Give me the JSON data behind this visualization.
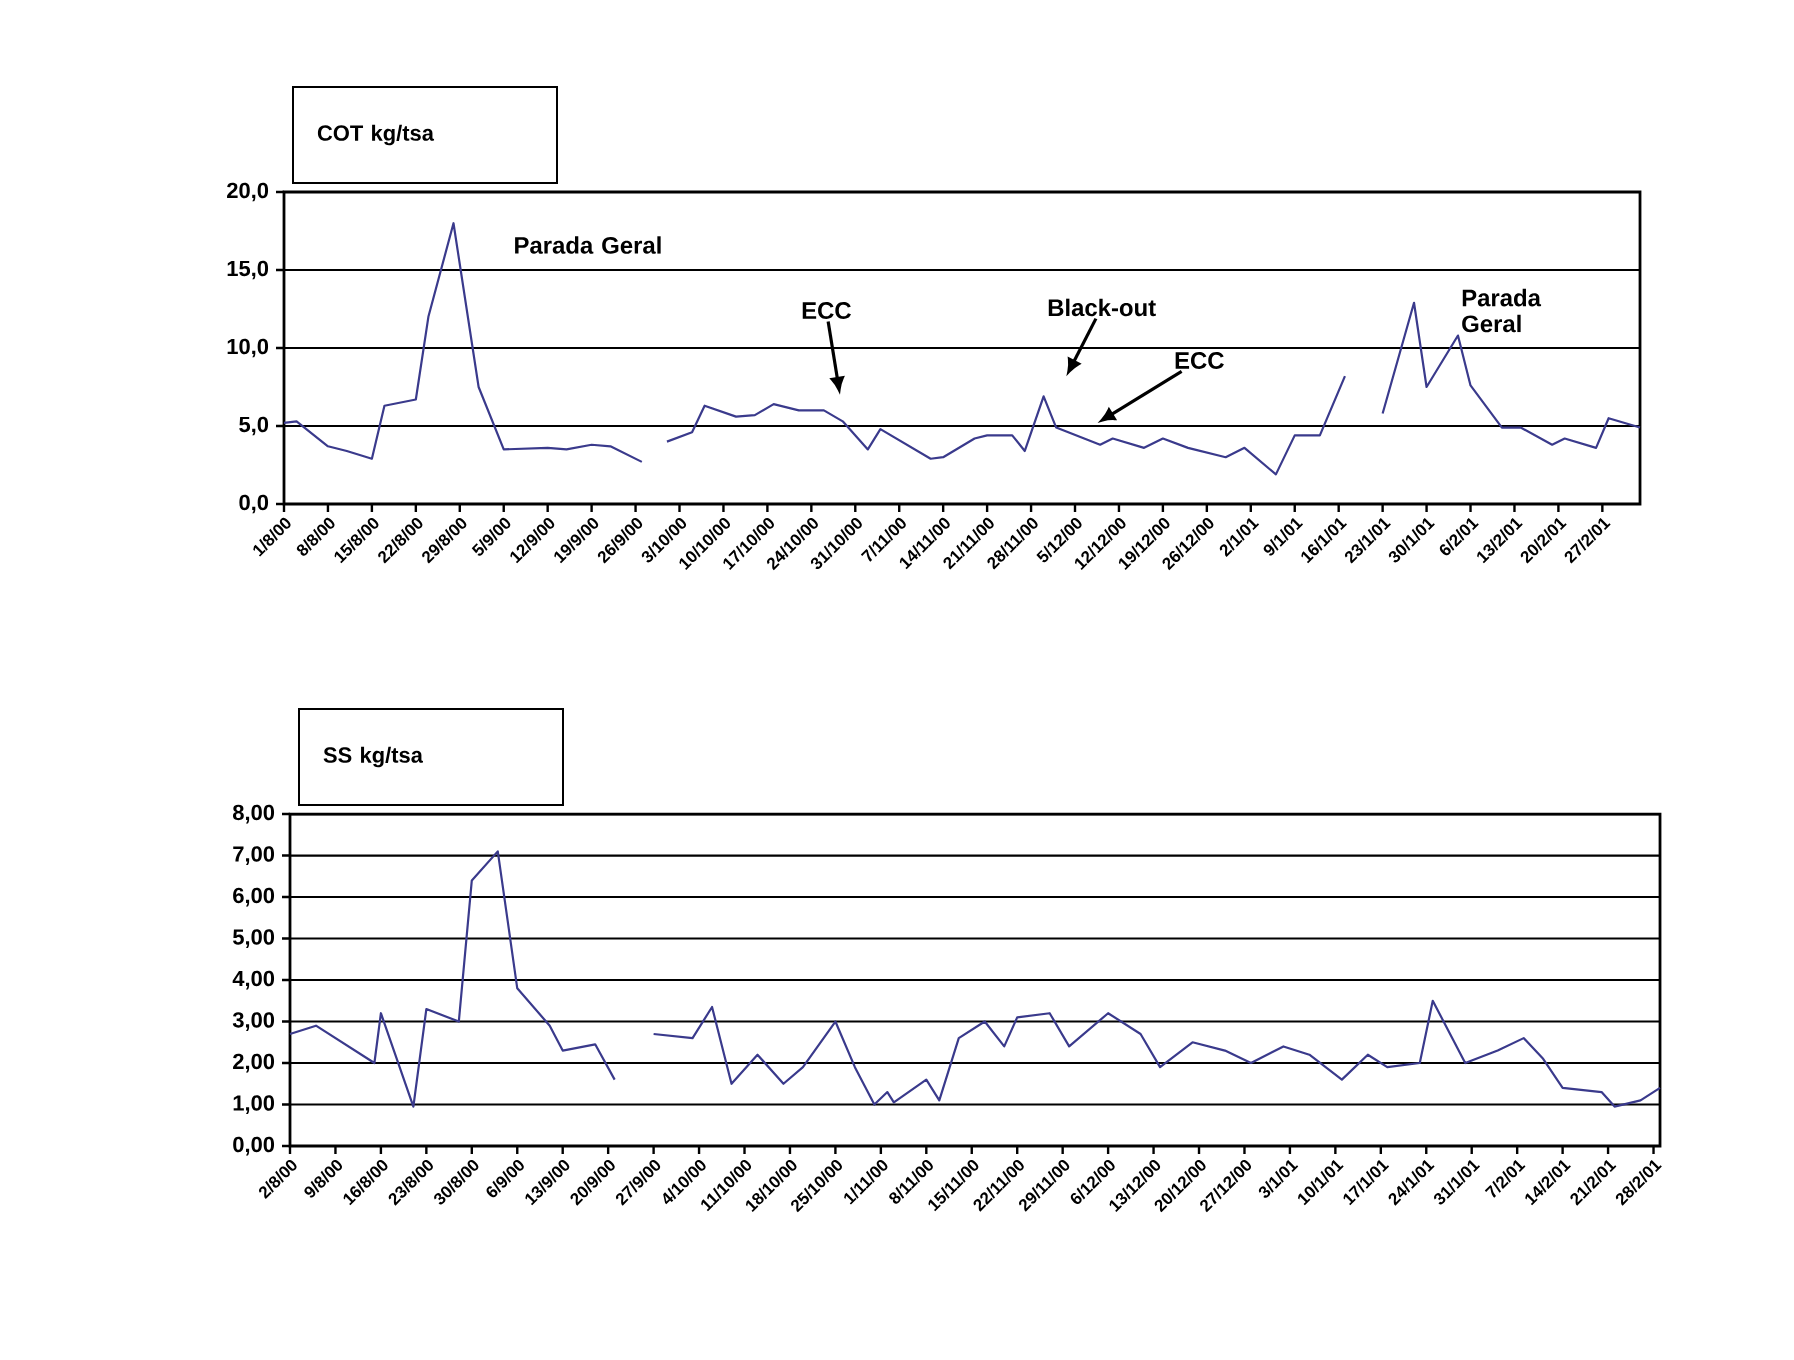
{
  "chart_data": [
    {
      "type": "line",
      "title": "COT kg/tsa",
      "color": "#3a3a8c",
      "grid": "y",
      "line_style": "solid",
      "x": [
        "2000-08-01",
        "2000-08-03",
        "2000-08-08",
        "2000-08-11",
        "2000-08-15",
        "2000-08-17",
        "2000-08-22",
        "2000-08-24",
        "2000-08-28",
        "2000-09-01",
        "2000-09-05",
        "2000-09-12",
        "2000-09-15",
        "2000-09-19",
        "2000-09-22",
        "2000-09-27",
        "2000-09-29",
        "2000-10-01",
        "2000-10-05",
        "2000-10-07",
        "2000-10-12",
        "2000-10-15",
        "2000-10-18",
        "2000-10-22",
        "2000-10-26",
        "2000-10-29",
        "2000-11-02",
        "2000-11-04",
        "2000-11-12",
        "2000-11-14",
        "2000-11-19",
        "2000-11-21",
        "2000-11-25",
        "2000-11-27",
        "2000-11-30",
        "2000-12-02",
        "2000-12-09",
        "2000-12-11",
        "2000-12-16",
        "2000-12-19",
        "2000-12-23",
        "2000-12-29",
        "2001-01-01",
        "2001-01-06",
        "2001-01-09",
        "2001-01-13",
        "2001-01-17",
        "2001-01-20",
        "2001-01-23",
        "2001-01-28",
        "2001-01-30",
        "2001-02-04",
        "2001-02-06",
        "2001-02-11",
        "2001-02-14",
        "2001-02-19",
        "2001-02-21",
        "2001-02-26",
        "2001-02-28",
        "2001-03-05"
      ],
      "values": [
        5.2,
        5.3,
        3.7,
        3.4,
        2.9,
        6.3,
        6.7,
        12.0,
        18.0,
        7.5,
        3.5,
        3.6,
        3.5,
        3.8,
        3.7,
        2.7,
        null,
        4.0,
        4.6,
        6.3,
        5.6,
        5.7,
        6.4,
        6.0,
        6.0,
        5.3,
        3.5,
        4.8,
        2.9,
        3.0,
        4.2,
        4.4,
        4.4,
        3.4,
        6.9,
        4.9,
        3.8,
        4.2,
        3.6,
        4.2,
        3.6,
        3.0,
        3.6,
        1.9,
        4.4,
        4.4,
        8.2,
        null,
        5.8,
        12.9,
        7.5,
        10.8,
        7.6,
        4.9,
        4.9,
        3.8,
        4.2,
        3.6,
        5.5,
        4.9
      ],
      "xlim": [
        "2000-08-01",
        "2001-03-05"
      ],
      "xticks": [
        {
          "value": "2000-08-01",
          "label": "1/8/00"
        },
        {
          "value": "2000-08-08",
          "label": "8/8/00"
        },
        {
          "value": "2000-08-15",
          "label": "15/8/00"
        },
        {
          "value": "2000-08-22",
          "label": "22/8/00"
        },
        {
          "value": "2000-08-29",
          "label": "29/8/00"
        },
        {
          "value": "2000-09-05",
          "label": "5/9/00"
        },
        {
          "value": "2000-09-12",
          "label": "12/9/00"
        },
        {
          "value": "2000-09-19",
          "label": "19/9/00"
        },
        {
          "value": "2000-09-26",
          "label": "26/9/00"
        },
        {
          "value": "2000-10-03",
          "label": "3/10/00"
        },
        {
          "value": "2000-10-10",
          "label": "10/10/00"
        },
        {
          "value": "2000-10-17",
          "label": "17/10/00"
        },
        {
          "value": "2000-10-24",
          "label": "24/10/00"
        },
        {
          "value": "2000-10-31",
          "label": "31/10/00"
        },
        {
          "value": "2000-11-07",
          "label": "7/11/00"
        },
        {
          "value": "2000-11-14",
          "label": "14/11/00"
        },
        {
          "value": "2000-11-21",
          "label": "21/11/00"
        },
        {
          "value": "2000-11-28",
          "label": "28/11/00"
        },
        {
          "value": "2000-12-05",
          "label": "5/12/00"
        },
        {
          "value": "2000-12-12",
          "label": "12/12/00"
        },
        {
          "value": "2000-12-19",
          "label": "19/12/00"
        },
        {
          "value": "2000-12-26",
          "label": "26/12/00"
        },
        {
          "value": "2001-01-02",
          "label": "2/1/01"
        },
        {
          "value": "2001-01-09",
          "label": "9/1/01"
        },
        {
          "value": "2001-01-16",
          "label": "16/1/01"
        },
        {
          "value": "2001-01-23",
          "label": "23/1/01"
        },
        {
          "value": "2001-01-30",
          "label": "30/1/01"
        },
        {
          "value": "2001-02-06",
          "label": "6/2/01"
        },
        {
          "value": "2001-02-13",
          "label": "13/2/01"
        },
        {
          "value": "2001-02-20",
          "label": "20/2/01"
        },
        {
          "value": "2001-02-27",
          "label": "27/2/01"
        }
      ],
      "ylim": [
        0,
        20
      ],
      "yticks": [
        {
          "value": 0,
          "label": "0,0"
        },
        {
          "value": 5,
          "label": "5,0"
        },
        {
          "value": 10,
          "label": "10,0"
        },
        {
          "value": 15,
          "label": "15,0"
        },
        {
          "value": 20,
          "label": "20,0"
        }
      ],
      "annotations": [
        "Parada Geral",
        "ECC",
        "Black-out",
        "ECC",
        "Parada Geral"
      ]
    },
    {
      "type": "line",
      "title": "SS kg/tsa",
      "color": "#3a3a8c",
      "grid": "y",
      "line_style": "solid",
      "x": [
        "2000-08-02",
        "2000-08-06",
        "2000-08-15",
        "2000-08-16",
        "2000-08-21",
        "2000-08-23",
        "2000-08-28",
        "2000-08-30",
        "2000-09-03",
        "2000-09-06",
        "2000-09-11",
        "2000-09-13",
        "2000-09-18",
        "2000-09-21",
        "2000-09-24",
        "2000-09-27",
        "2000-10-03",
        "2000-10-06",
        "2000-10-09",
        "2000-10-13",
        "2000-10-17",
        "2000-10-20",
        "2000-10-25",
        "2000-10-28",
        "2000-10-31",
        "2000-11-02",
        "2000-11-03",
        "2000-11-08",
        "2000-11-10",
        "2000-11-13",
        "2000-11-17",
        "2000-11-20",
        "2000-11-22",
        "2000-11-27",
        "2000-11-30",
        "2000-12-06",
        "2000-12-11",
        "2000-12-14",
        "2000-12-19",
        "2000-12-24",
        "2000-12-28",
        "2001-01-02",
        "2001-01-06",
        "2001-01-11",
        "2001-01-15",
        "2001-01-18",
        "2001-01-23",
        "2001-01-25",
        "2001-01-30",
        "2001-02-04",
        "2001-02-08",
        "2001-02-11",
        "2001-02-14",
        "2001-02-20",
        "2001-02-22",
        "2001-02-26",
        "2001-03-01"
      ],
      "values": [
        2.7,
        2.9,
        2.0,
        3.2,
        0.95,
        3.3,
        3.0,
        6.4,
        7.1,
        3.8,
        2.9,
        2.3,
        2.45,
        1.6,
        null,
        2.7,
        2.6,
        3.35,
        1.5,
        2.2,
        1.5,
        1.9,
        3.0,
        1.9,
        1.0,
        1.3,
        1.05,
        1.6,
        1.1,
        2.6,
        3.0,
        2.4,
        3.1,
        3.2,
        2.4,
        3.2,
        2.7,
        1.9,
        2.5,
        2.3,
        2.0,
        2.4,
        2.2,
        1.6,
        2.2,
        1.9,
        2.0,
        3.5,
        2.0,
        2.3,
        2.6,
        2.1,
        1.4,
        1.3,
        0.95,
        1.1,
        1.4
      ],
      "xlim": [
        "2000-08-02",
        "2001-03-01"
      ],
      "xticks": [
        {
          "value": "2000-08-02",
          "label": "2/8/00"
        },
        {
          "value": "2000-08-09",
          "label": "9/8/00"
        },
        {
          "value": "2000-08-16",
          "label": "16/8/00"
        },
        {
          "value": "2000-08-23",
          "label": "23/8/00"
        },
        {
          "value": "2000-08-30",
          "label": "30/8/00"
        },
        {
          "value": "2000-09-06",
          "label": "6/9/00"
        },
        {
          "value": "2000-09-13",
          "label": "13/9/00"
        },
        {
          "value": "2000-09-20",
          "label": "20/9/00"
        },
        {
          "value": "2000-09-27",
          "label": "27/9/00"
        },
        {
          "value": "2000-10-04",
          "label": "4/10/00"
        },
        {
          "value": "2000-10-11",
          "label": "11/10/00"
        },
        {
          "value": "2000-10-18",
          "label": "18/10/00"
        },
        {
          "value": "2000-10-25",
          "label": "25/10/00"
        },
        {
          "value": "2000-11-01",
          "label": "1/11/00"
        },
        {
          "value": "2000-11-08",
          "label": "8/11/00"
        },
        {
          "value": "2000-11-15",
          "label": "15/11/00"
        },
        {
          "value": "2000-11-22",
          "label": "22/11/00"
        },
        {
          "value": "2000-11-29",
          "label": "29/11/00"
        },
        {
          "value": "2000-12-06",
          "label": "6/12/00"
        },
        {
          "value": "2000-12-13",
          "label": "13/12/00"
        },
        {
          "value": "2000-12-20",
          "label": "20/12/00"
        },
        {
          "value": "2000-12-27",
          "label": "27/12/00"
        },
        {
          "value": "2001-01-03",
          "label": "3/1/01"
        },
        {
          "value": "2001-01-10",
          "label": "10/1/01"
        },
        {
          "value": "2001-01-17",
          "label": "17/1/01"
        },
        {
          "value": "2001-01-24",
          "label": "24/1/01"
        },
        {
          "value": "2001-01-31",
          "label": "31/1/01"
        },
        {
          "value": "2001-02-07",
          "label": "7/2/01"
        },
        {
          "value": "2001-02-14",
          "label": "14/2/01"
        },
        {
          "value": "2001-02-21",
          "label": "21/2/01"
        },
        {
          "value": "2001-02-28",
          "label": "28/2/01"
        }
      ],
      "ylim": [
        0,
        8
      ],
      "yticks": [
        {
          "value": 0,
          "label": "0,00"
        },
        {
          "value": 1,
          "label": "1,00"
        },
        {
          "value": 2,
          "label": "2,00"
        },
        {
          "value": 3,
          "label": "3,00"
        },
        {
          "value": 4,
          "label": "4,00"
        },
        {
          "value": 5,
          "label": "5,00"
        },
        {
          "value": 6,
          "label": "6,00"
        },
        {
          "value": 7,
          "label": "7,00"
        },
        {
          "value": 8,
          "label": "8,00"
        }
      ]
    }
  ]
}
